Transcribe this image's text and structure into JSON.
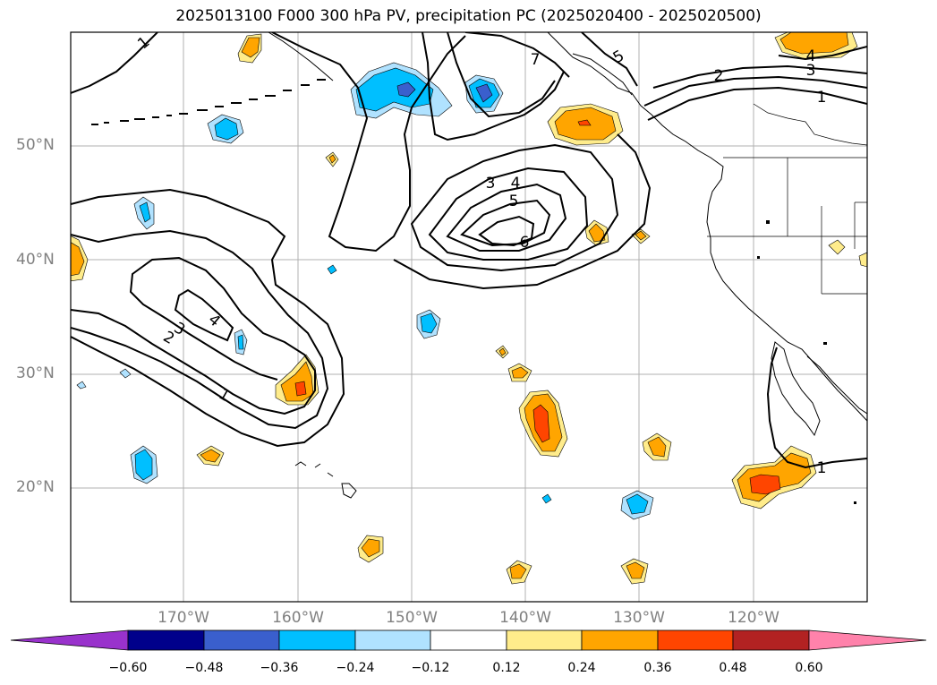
{
  "title": "2025013100 F000 300 hPa PV, precipitation PC (2025020400 - 2025020500)",
  "lat_labels": [
    "50°N",
    "40°N",
    "30°N",
    "20°N"
  ],
  "lon_labels": [
    "170°W",
    "160°W",
    "150°W",
    "140°W",
    "130°W",
    "120°W"
  ],
  "colorbar": {
    "ticks": [
      "−0.60",
      "−0.48",
      "−0.36",
      "−0.24",
      "−0.12",
      "0.12",
      "0.24",
      "0.36",
      "0.48",
      "0.60"
    ],
    "colors": [
      "#9932cc",
      "#00008b",
      "#3a5fcd",
      "#00bfff",
      "#b0e2ff",
      "#ffffff",
      "#ffec8b",
      "#ffa500",
      "#ff4500",
      "#b22222",
      "#ff82ab"
    ]
  },
  "contour_labels": [
    "1",
    "2",
    "3",
    "4",
    "5",
    "6",
    "7",
    "4",
    "3",
    "2",
    "1",
    "3",
    "4",
    "5",
    "6",
    "1",
    "2",
    "3",
    "4",
    "1",
    "1"
  ]
}
